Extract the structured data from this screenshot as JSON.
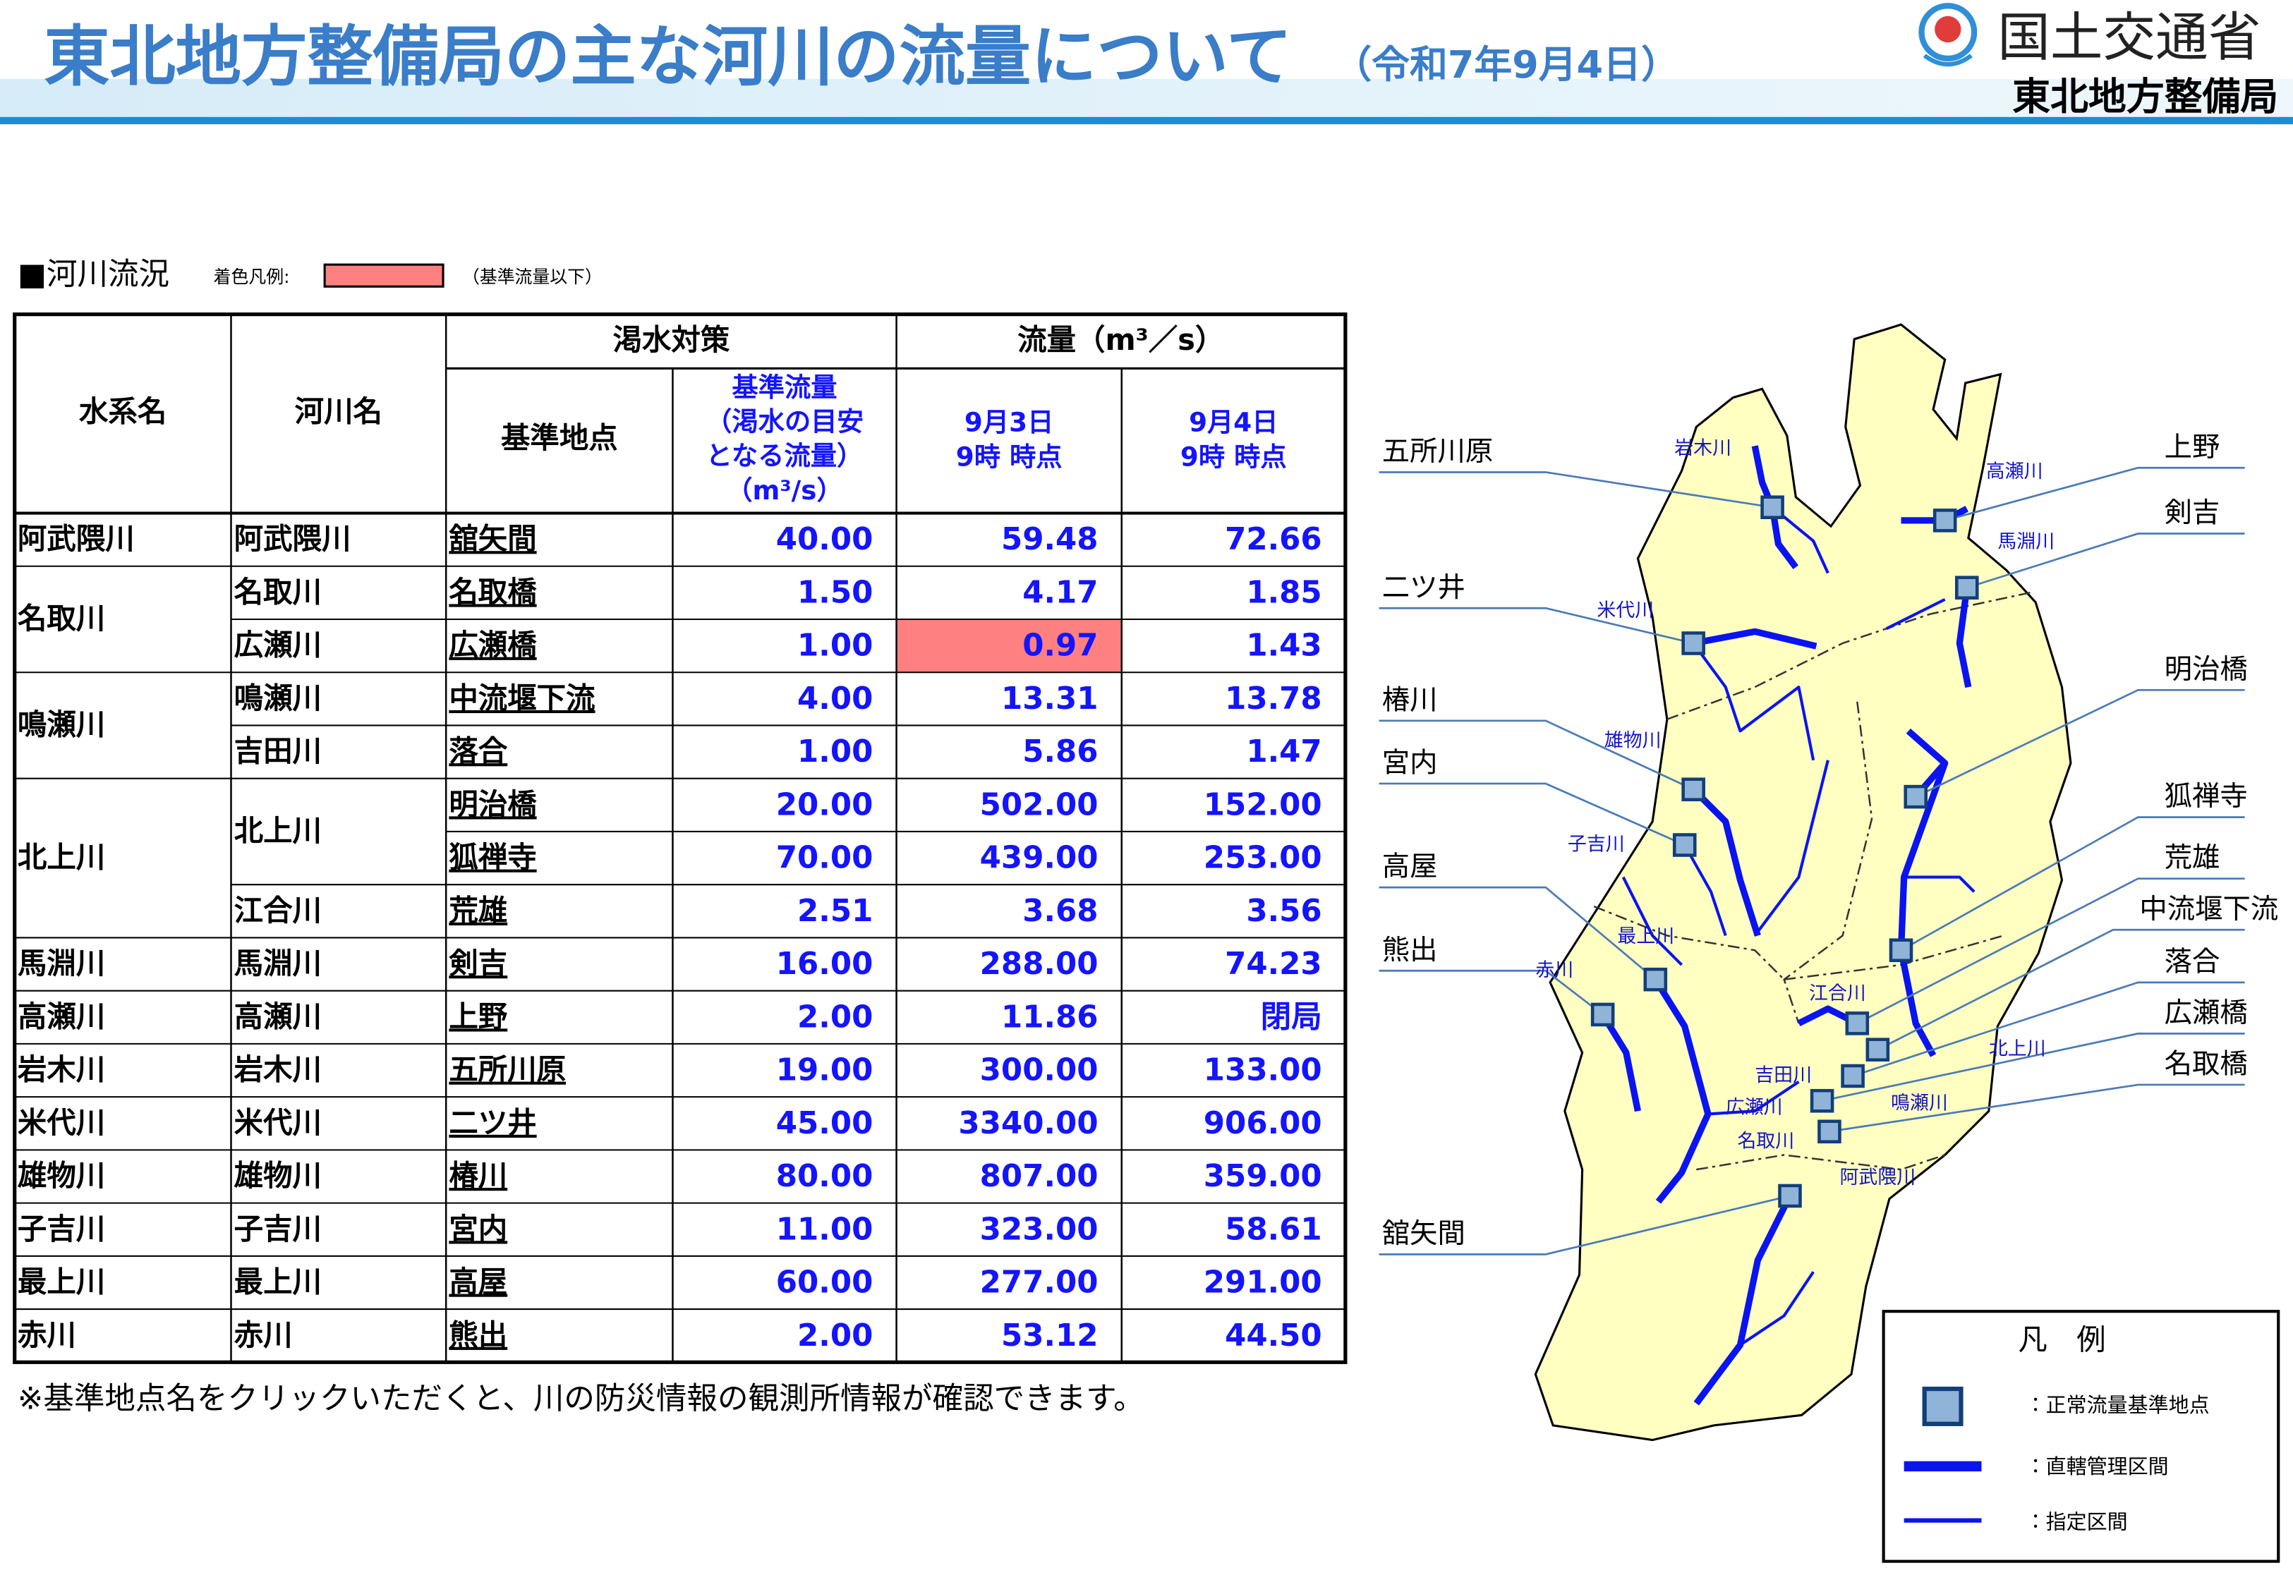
{
  "header": {
    "title": "東北地方整備局の主な河川の流量について",
    "date": "（令和7年9月4日）",
    "logo": "国土交通省",
    "office": "東北地方整備局"
  },
  "section": {
    "title": "■河川流況",
    "legend_label": "着色凡例:",
    "legend_note": "（基準流量以下）"
  },
  "table": {
    "headers": {
      "system": "水系名",
      "river": "河川名",
      "drought": "渇水対策",
      "flow": "流量（m³／s）",
      "point": "基準地点",
      "base": [
        "基準流量",
        "（渇水の目安",
        "となる流量）",
        "（m³/s）"
      ],
      "d3": [
        "9月3日",
        "9時 時点"
      ],
      "d4": [
        "9月4日",
        "9時 時点"
      ]
    },
    "groups": [
      {
        "system": "阿武隈川",
        "rivers": [
          {
            "name": "阿武隈川",
            "points": [
              {
                "name": "舘矢間",
                "base": "40.00",
                "d3": "59.48",
                "d4": "72.66"
              }
            ]
          }
        ]
      },
      {
        "system": "名取川",
        "rivers": [
          {
            "name": "名取川",
            "points": [
              {
                "name": "名取橋",
                "base": "1.50",
                "d3": "4.17",
                "d4": "1.85"
              }
            ]
          },
          {
            "name": "広瀬川",
            "points": [
              {
                "name": "広瀬橋",
                "base": "1.00",
                "d3": "0.97",
                "d4": "1.43",
                "highlight": [
                  "d3"
                ]
              }
            ]
          }
        ]
      },
      {
        "system": "鳴瀬川",
        "rivers": [
          {
            "name": "鳴瀬川",
            "points": [
              {
                "name": "中流堰下流",
                "base": "4.00",
                "d3": "13.31",
                "d4": "13.78"
              }
            ]
          },
          {
            "name": "吉田川",
            "points": [
              {
                "name": "落合",
                "base": "1.00",
                "d3": "5.86",
                "d4": "1.47"
              }
            ]
          }
        ]
      },
      {
        "system": "北上川",
        "rivers": [
          {
            "name": "北上川",
            "points": [
              {
                "name": "明治橋",
                "base": "20.00",
                "d3": "502.00",
                "d4": "152.00"
              },
              {
                "name": "狐禅寺",
                "base": "70.00",
                "d3": "439.00",
                "d4": "253.00"
              }
            ]
          },
          {
            "name": "江合川",
            "points": [
              {
                "name": "荒雄",
                "base": "2.51",
                "d3": "3.68",
                "d4": "3.56"
              }
            ]
          }
        ]
      },
      {
        "system": "馬淵川",
        "rivers": [
          {
            "name": "馬淵川",
            "points": [
              {
                "name": "剣吉",
                "base": "16.00",
                "d3": "288.00",
                "d4": "74.23"
              }
            ]
          }
        ]
      },
      {
        "system": "高瀬川",
        "rivers": [
          {
            "name": "高瀬川",
            "points": [
              {
                "name": "上野",
                "base": "2.00",
                "d3": "11.86",
                "d4": "閉局"
              }
            ]
          }
        ]
      },
      {
        "system": "岩木川",
        "rivers": [
          {
            "name": "岩木川",
            "points": [
              {
                "name": "五所川原",
                "base": "19.00",
                "d3": "300.00",
                "d4": "133.00"
              }
            ]
          }
        ]
      },
      {
        "system": "米代川",
        "rivers": [
          {
            "name": "米代川",
            "points": [
              {
                "name": "二ツ井",
                "base": "45.00",
                "d3": "3340.00",
                "d4": "906.00"
              }
            ]
          }
        ]
      },
      {
        "system": "雄物川",
        "rivers": [
          {
            "name": "雄物川",
            "points": [
              {
                "name": "椿川",
                "base": "80.00",
                "d3": "807.00",
                "d4": "359.00"
              }
            ]
          }
        ]
      },
      {
        "system": "子吉川",
        "rivers": [
          {
            "name": "子吉川",
            "points": [
              {
                "name": "宮内",
                "base": "11.00",
                "d3": "323.00",
                "d4": "58.61"
              }
            ]
          }
        ]
      },
      {
        "system": "最上川",
        "rivers": [
          {
            "name": "最上川",
            "points": [
              {
                "name": "高屋",
                "base": "60.00",
                "d3": "277.00",
                "d4": "291.00"
              }
            ]
          }
        ]
      },
      {
        "system": "赤川",
        "rivers": [
          {
            "name": "赤川",
            "points": [
              {
                "name": "熊出",
                "base": "2.00",
                "d3": "53.12",
                "d4": "44.50"
              }
            ]
          }
        ]
      }
    ]
  },
  "note": "※基準地点名をクリックいただくと、川の防災情報の観測所情報が確認できます。",
  "map": {
    "stations": [
      "五所川原",
      "二ツ井",
      "椿川",
      "宮内",
      "高屋",
      "熊出",
      "舘矢間",
      "上野",
      "剣吉",
      "明治橋",
      "狐禅寺",
      "荒雄",
      "中流堰下流",
      "落合",
      "広瀬橋",
      "名取橋"
    ],
    "rivers": [
      "岩木川",
      "高瀬川",
      "馬淵川",
      "米代川",
      "雄物川",
      "子吉川",
      "最上川",
      "赤川",
      "江合川",
      "吉田川",
      "北上川",
      "広瀬川",
      "鳴瀬川",
      "名取川",
      "阿武隈川"
    ],
    "legend": {
      "title": "凡　例",
      "items": [
        "：正常流量基準地点",
        "：直轄管理区間",
        "：指定区間"
      ]
    }
  }
}
